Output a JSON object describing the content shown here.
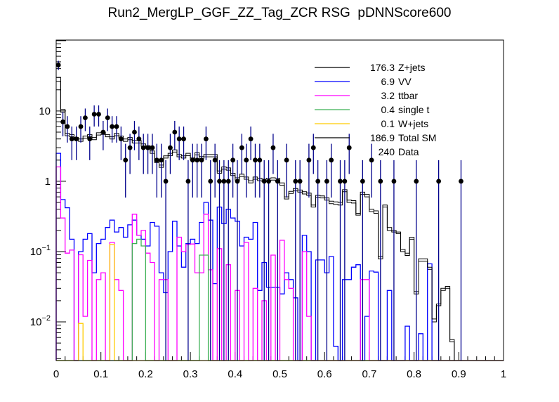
{
  "title": "Run2_MergLP_GGF_ZZ_Tag_ZCR RSG  pDNNScore600",
  "legend": {
    "entries": [
      {
        "value": "176.3",
        "label": "Z+jets",
        "color": "#000000",
        "sample": "line"
      },
      {
        "value": "6.9",
        "label": "VV",
        "color": "#0000ff",
        "sample": "line"
      },
      {
        "value": "3.2",
        "label": "ttbar",
        "color": "#ff00ff",
        "sample": "line"
      },
      {
        "value": "0.4",
        "label": "single t",
        "color": "#3cb054",
        "sample": "line"
      },
      {
        "value": "0.1",
        "label": "W+jets",
        "color": "#ffcc00",
        "sample": "line"
      },
      {
        "value": "186.9",
        "label": "Total SM",
        "color": "#000000",
        "sample": "line"
      },
      {
        "value": "240",
        "label": "Data",
        "color": "#000000",
        "sample": "none"
      }
    ]
  },
  "chart_data": {
    "type": "histogram-overlay",
    "title": "Run2_MergLP_GGF_ZZ_Tag_ZCR RSG  pDNNScore600",
    "xlabel": "",
    "ylabel": "",
    "x_range": [
      0,
      1
    ],
    "n_bins": 100,
    "y_scale": "log",
    "y_range": [
      0.00282,
      102
    ],
    "grid": false,
    "legend_position": "top-right",
    "x_ticks": [
      {
        "v": 0,
        "label": "0"
      },
      {
        "v": 0.1,
        "label": "0.1"
      },
      {
        "v": 0.2,
        "label": "0.2"
      },
      {
        "v": 0.3,
        "label": "0.3"
      },
      {
        "v": 0.4,
        "label": "0.4"
      },
      {
        "v": 0.5,
        "label": "0.5"
      },
      {
        "v": 0.6,
        "label": "0.6"
      },
      {
        "v": 0.7,
        "label": "0.7"
      },
      {
        "v": 0.8,
        "label": "0.8"
      },
      {
        "v": 0.9,
        "label": "0.9"
      },
      {
        "v": 1,
        "label": "1"
      }
    ],
    "x_minor_step": 0.02,
    "y_ticks": [
      {
        "v": 10,
        "base": "10",
        "exp": ""
      },
      {
        "v": 1,
        "base": "1",
        "exp": ""
      },
      {
        "v": 0.1,
        "base": "10",
        "exp": "−1"
      },
      {
        "v": 0.01,
        "base": "10",
        "exp": "−2"
      }
    ],
    "series": [
      {
        "name": "Z+jets",
        "key": "zjets",
        "color": "#000000",
        "width": 1,
        "values": [
          26.5,
          9.6,
          4.45,
          4.3,
          3.9,
          3.7,
          4.1,
          4.3,
          3.9,
          4.55,
          4.65,
          4.3,
          4.0,
          4.45,
          4.1,
          3.7,
          3.9,
          3.5,
          3.5,
          3.15,
          3.0,
          2.5,
          1.85,
          1.58,
          2.14,
          2.32,
          2.6,
          2.23,
          2.14,
          2.32,
          2.0,
          2.37,
          2.09,
          2.23,
          2.23,
          2.23,
          1.3,
          1.49,
          1.44,
          1.21,
          1.04,
          1.17,
          1.07,
          0.95,
          1.07,
          1.02,
          0.99,
          1.02,
          1.04,
          1.02,
          0.88,
          0.56,
          0.67,
          0.73,
          0.7,
          0.66,
          0.63,
          0.43,
          0.59,
          0.58,
          0.54,
          0.48,
          0.47,
          0.46,
          0.71,
          0.5,
          0.49,
          0.33,
          0.65,
          0.6,
          0.37,
          0.35,
          0.079,
          0.43,
          0.2,
          0.19,
          0.18,
          0.1,
          0.088,
          0.15,
          0.025,
          0.073,
          0.073,
          0.056,
          0.01,
          0.017,
          0.028,
          0.03,
          0.0052,
          0,
          0,
          0,
          0,
          0,
          0,
          0,
          0,
          0,
          0,
          0
        ]
      },
      {
        "name": "VV",
        "key": "vv",
        "color": "#0000ff",
        "width": 1.3,
        "values": [
          2.5,
          0.55,
          0.42,
          0.15,
          0,
          0.1,
          0.15,
          0.18,
          0.05,
          0.13,
          0.15,
          0.22,
          0.28,
          0.19,
          0.22,
          0.16,
          0.24,
          0.28,
          0.17,
          0.15,
          0.12,
          0.26,
          0.23,
          0.05,
          0.026,
          0.1,
          0.27,
          0.12,
          0.06,
          0.13,
          0.15,
          0.13,
          0.26,
          0.5,
          0.28,
          0.035,
          0.43,
          0.25,
          0.4,
          0.3,
          0.27,
          0.12,
          0.16,
          0.15,
          0.26,
          0.028,
          0.07,
          0.031,
          0.031,
          0.031,
          0.025,
          0.05,
          0.04,
          0.022,
          0,
          0.17,
          0.1,
          0,
          0.076,
          0.076,
          0.05,
          0.085,
          0.0045,
          0,
          0.04,
          0.04,
          0.06,
          0.065,
          0,
          0.012,
          0.053,
          0.051,
          0,
          0,
          0.028,
          0,
          0,
          0,
          0.0087,
          0,
          0,
          0.0068,
          0,
          0.067,
          0,
          0,
          0,
          0,
          0,
          0,
          0,
          0,
          0,
          0,
          0,
          0,
          0,
          0,
          0,
          0
        ]
      },
      {
        "name": "ttbar",
        "key": "ttbar",
        "color": "#ff00ff",
        "width": 1.3,
        "values": [
          1.6,
          0.3,
          0.095,
          0.105,
          0,
          0.09,
          0.012,
          0.075,
          0,
          0.04,
          0.05,
          0,
          0.135,
          0.04,
          0.028,
          0,
          0,
          0.34,
          0.17,
          0.2,
          0.095,
          0.07,
          0,
          0.04,
          0.04,
          0,
          0,
          0.16,
          0.1,
          0.126,
          0.128,
          0.05,
          0.05,
          0.34,
          0.055,
          0,
          0.11,
          0,
          0.065,
          0,
          0.028,
          0,
          0.135,
          0,
          0.03,
          0,
          0.02,
          0,
          0.089,
          0,
          0.145,
          0.04,
          0.03,
          0,
          0,
          0.1,
          0.012,
          0,
          0,
          0,
          0,
          0,
          0,
          0,
          0,
          0,
          0,
          0,
          0.04,
          0.04,
          0,
          0,
          0,
          0,
          0,
          0,
          0,
          0,
          0,
          0,
          0,
          0,
          0,
          0,
          0,
          0,
          0,
          0,
          0,
          0,
          0,
          0,
          0,
          0,
          0,
          0,
          0,
          0,
          0,
          0
        ]
      },
      {
        "name": "single t",
        "key": "singlet",
        "color": "#3cb054",
        "width": 1.3,
        "values": [
          0,
          0,
          0,
          0,
          0,
          0,
          0,
          0,
          0,
          0,
          0,
          0,
          0,
          0,
          0,
          0,
          0,
          0.13,
          0.15,
          0.12,
          0,
          0,
          0,
          0,
          0,
          0,
          0,
          0,
          0,
          0,
          0,
          0,
          0.089,
          0.089,
          0,
          0,
          0,
          0,
          0,
          0,
          0,
          0,
          0,
          0,
          0,
          0,
          0,
          0,
          0,
          0,
          0,
          0,
          0,
          0,
          0,
          0,
          0,
          0,
          0,
          0,
          0,
          0,
          0,
          0,
          0,
          0,
          0,
          0,
          0,
          0,
          0,
          0,
          0,
          0,
          0,
          0,
          0,
          0,
          0,
          0,
          0,
          0,
          0,
          0,
          0,
          0,
          0,
          0,
          0,
          0,
          0,
          0,
          0,
          0,
          0,
          0,
          0,
          0,
          0,
          0
        ]
      },
      {
        "name": "W+jets",
        "key": "wjets",
        "color": "#ffcc00",
        "width": 1.3,
        "values": [
          0,
          0,
          0,
          0,
          0,
          0.0095,
          0,
          0,
          0,
          0,
          0,
          0,
          0.126,
          0,
          0,
          0,
          0,
          0,
          0,
          0,
          0,
          0,
          0,
          0,
          0,
          0,
          0,
          0,
          0,
          0,
          0,
          0,
          0,
          0,
          0,
          0,
          0,
          0,
          0,
          0,
          0,
          0,
          0,
          0,
          0,
          0,
          0,
          0,
          0,
          0,
          0,
          0,
          0,
          0,
          0,
          0,
          0,
          0,
          0,
          0,
          0,
          0,
          0,
          0,
          0,
          0,
          0,
          0,
          0,
          0,
          0,
          0,
          0,
          0,
          0,
          0,
          0,
          0,
          0,
          0,
          0,
          0,
          0,
          0,
          0,
          0,
          0,
          0,
          0,
          0,
          0,
          0,
          0,
          0,
          0,
          0,
          0,
          0,
          0,
          0
        ]
      },
      {
        "name": "Total SM",
        "key": "sm",
        "color": "#000000",
        "width": 1,
        "values": [
          30,
          10.5,
          4.8,
          4.6,
          4.2,
          4.0,
          4.4,
          4.6,
          4.2,
          4.9,
          5.0,
          4.6,
          4.3,
          4.8,
          4.4,
          4.0,
          4.2,
          3.8,
          3.8,
          3.4,
          3.2,
          2.7,
          2.0,
          1.7,
          2.3,
          2.5,
          2.8,
          2.4,
          2.3,
          2.5,
          2.15,
          2.55,
          2.25,
          2.4,
          2.4,
          2.4,
          1.4,
          1.6,
          1.55,
          1.3,
          1.12,
          1.26,
          1.15,
          1.02,
          1.15,
          1.1,
          1.07,
          1.1,
          1.12,
          1.1,
          0.95,
          0.6,
          0.72,
          0.79,
          0.75,
          0.71,
          0.68,
          0.46,
          0.63,
          0.62,
          0.58,
          0.52,
          0.51,
          0.5,
          0.76,
          0.54,
          0.53,
          0.35,
          0.7,
          0.65,
          0.4,
          0.38,
          0.085,
          0.46,
          0.22,
          0.2,
          0.19,
          0.107,
          0.095,
          0.16,
          0.027,
          0.079,
          0.079,
          0.06,
          0.011,
          0.018,
          0.03,
          0.032,
          0.0056,
          0,
          0,
          0,
          0,
          0,
          0,
          0,
          0,
          0,
          0,
          0
        ]
      }
    ],
    "data_points": {
      "name": "Data",
      "marker_color": "#000000",
      "error_color": "#00008b",
      "points": [
        [
          0.005,
          45
        ],
        [
          0.015,
          7
        ],
        [
          0.025,
          6
        ],
        [
          0.035,
          4
        ],
        [
          0.045,
          4
        ],
        [
          0.055,
          6
        ],
        [
          0.065,
          8
        ],
        [
          0.075,
          4
        ],
        [
          0.085,
          9
        ],
        [
          0.095,
          9
        ],
        [
          0.105,
          5
        ],
        [
          0.115,
          8
        ],
        [
          0.125,
          6
        ],
        [
          0.135,
          6
        ],
        [
          0.145,
          4
        ],
        [
          0.155,
          2
        ],
        [
          0.165,
          3
        ],
        [
          0.175,
          5
        ],
        [
          0.185,
          4
        ],
        [
          0.195,
          3
        ],
        [
          0.205,
          3
        ],
        [
          0.215,
          3
        ],
        [
          0.225,
          2
        ],
        [
          0.235,
          2
        ],
        [
          0.245,
          1
        ],
        [
          0.255,
          3
        ],
        [
          0.265,
          5
        ],
        [
          0.275,
          4
        ],
        [
          0.285,
          4
        ],
        [
          0.295,
          1
        ],
        [
          0.305,
          2
        ],
        [
          0.315,
          2
        ],
        [
          0.325,
          2
        ],
        [
          0.335,
          4
        ],
        [
          0.345,
          1
        ],
        [
          0.355,
          2
        ],
        [
          0.365,
          1
        ],
        [
          0.375,
          1
        ],
        [
          0.385,
          1
        ],
        [
          0.395,
          2
        ],
        [
          0.405,
          1
        ],
        [
          0.415,
          3
        ],
        [
          0.425,
          2
        ],
        [
          0.435,
          4
        ],
        [
          0.445,
          2
        ],
        [
          0.455,
          2
        ],
        [
          0.465,
          1
        ],
        [
          0.475,
          1
        ],
        [
          0.485,
          3
        ],
        [
          0.495,
          1
        ],
        [
          0.515,
          2
        ],
        [
          0.535,
          1
        ],
        [
          0.545,
          1
        ],
        [
          0.565,
          2
        ],
        [
          0.575,
          3
        ],
        [
          0.585,
          1
        ],
        [
          0.605,
          1
        ],
        [
          0.615,
          2
        ],
        [
          0.635,
          1
        ],
        [
          0.645,
          1
        ],
        [
          0.655,
          3
        ],
        [
          0.685,
          1
        ],
        [
          0.705,
          2
        ],
        [
          0.725,
          1
        ],
        [
          0.755,
          1
        ],
        [
          0.805,
          1
        ],
        [
          0.855,
          1
        ],
        [
          0.905,
          1
        ]
      ]
    }
  },
  "colors": {
    "background": "#ffffff",
    "frame": "#000000",
    "data_error_bar": "#00008b"
  }
}
